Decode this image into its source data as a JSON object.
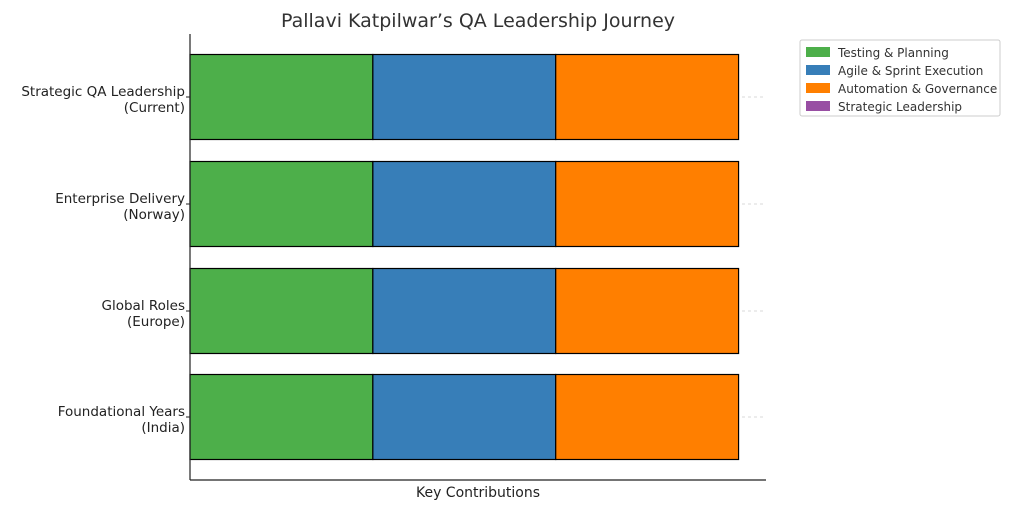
{
  "chart_data": {
    "type": "bar",
    "orientation": "horizontal",
    "stacked": true,
    "title": "Pallavi Katpilwar’s QA Leadership Journey",
    "xlabel": "Key Contributions",
    "ylabel": "",
    "categories": [
      {
        "line1": "Strategic QA Leadership",
        "line2": "(Current)"
      },
      {
        "line1": "Enterprise Delivery",
        "line2": "(Norway)"
      },
      {
        "line1": "Global Roles",
        "line2": "(Europe)"
      },
      {
        "line1": "Foundational Years",
        "line2": "(India)"
      }
    ],
    "series": [
      {
        "name": "Testing & Planning",
        "color": "#4daf4a",
        "values": [
          1,
          1,
          1,
          1
        ]
      },
      {
        "name": "Agile & Sprint Execution",
        "color": "#377eb8",
        "values": [
          1,
          1,
          1,
          1
        ]
      },
      {
        "name": "Automation & Governance",
        "color": "#ff7f00",
        "values": [
          1,
          1,
          1,
          1
        ]
      },
      {
        "name": "Strategic Leadership",
        "color": "#984ea3",
        "values": [
          0,
          0,
          0,
          0
        ]
      }
    ],
    "xlim": [
      0,
      3.15
    ],
    "grid": true,
    "legend_position": "top-right outside"
  }
}
